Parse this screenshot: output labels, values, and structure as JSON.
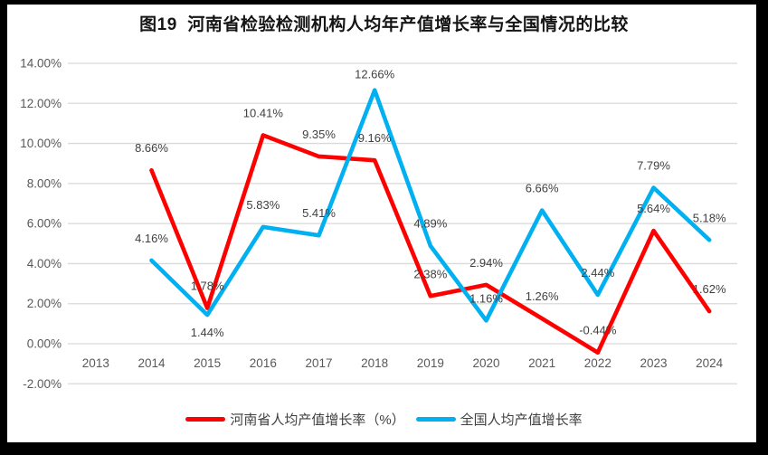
{
  "colors": {
    "frame": "#000000",
    "background": "#ffffff",
    "gridline": "#d9d9d9",
    "axis_text": "#595959",
    "label_text": "#404040",
    "henan_red": "#ff0000",
    "national_blue": "#00b0f0"
  },
  "chart_data": {
    "type": "line",
    "title": "图19  河南省检验检测机构人均年产值增长率与全国情况的比较",
    "categories": [
      "2013",
      "2014",
      "2015",
      "2016",
      "2017",
      "2018",
      "2019",
      "2020",
      "2021",
      "2022",
      "2023",
      "2024"
    ],
    "series": [
      {
        "name": "河南省人均产值增长率（%）",
        "color": "#ff0000",
        "values": [
          null,
          8.66,
          1.78,
          10.41,
          9.35,
          9.16,
          2.38,
          2.94,
          1.26,
          -0.44,
          5.64,
          1.62
        ]
      },
      {
        "name": "全国人均产值增长率",
        "color": "#00b0f0",
        "values": [
          null,
          4.16,
          1.44,
          5.83,
          5.41,
          12.66,
          4.89,
          1.16,
          6.66,
          2.44,
          7.79,
          5.18
        ]
      }
    ],
    "ylim": [
      -2,
      14
    ],
    "y_tick_step": 2,
    "y_tick_labels": [
      "14.00%",
      "12.00%",
      "10.00%",
      "8.00%",
      "6.00%",
      "4.00%",
      "2.00%",
      "0.00%",
      "-2.00%"
    ],
    "data_label_format": "0.00%",
    "grid": true,
    "legend_position": "bottom"
  }
}
